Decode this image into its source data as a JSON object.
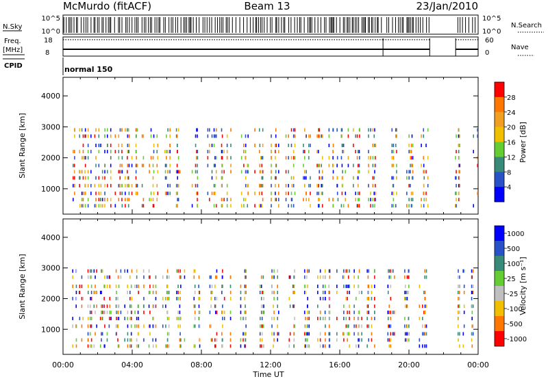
{
  "header": {
    "station": "McMurdo (fitACF)",
    "beam": "Beam 13",
    "date": "23/Jan/2010"
  },
  "params": {
    "nsky_label": "N.Sky",
    "nsearch_label": "N.Search",
    "nsky_ticks": [
      "10^5",
      "10^0"
    ],
    "nsearch_ticks": [
      "10^5",
      "10^0"
    ],
    "freq_label_top": "Freq.",
    "freq_label_unit": "[MHz]",
    "freq_ticks": [
      "18",
      "8"
    ],
    "nave_label": "Nave",
    "nave_ticks": [
      "60",
      "0"
    ],
    "cpid_label": "CPID",
    "cpid_value": "normal 150"
  },
  "axes": {
    "xlabel": "Time UT",
    "xticks": [
      "00:00",
      "04:00",
      "08:00",
      "12:00",
      "16:00",
      "20:00",
      "00:00"
    ],
    "xrange_hours": [
      0,
      24
    ],
    "ylabel": "Slant Range [km]",
    "yticks": [
      "1000",
      "2000",
      "3000",
      "4000"
    ],
    "yrange_km": [
      180,
      4600
    ]
  },
  "chart_data": [
    {
      "type": "heatmap",
      "panel": "power",
      "colorbar_label": "Power [dB]",
      "colorbar_ticks": [
        "4",
        "8",
        "12",
        "16",
        "20",
        "24",
        "28"
      ],
      "colorbar_range": [
        0,
        32
      ],
      "colors": [
        "#0000ff",
        "#2a52c8",
        "#3a8a7a",
        "#66cc33",
        "#f0c000",
        "#f0a020",
        "#ff7700",
        "#ff0000"
      ],
      "gates_km": [
        450,
        650,
        850,
        1100,
        1350,
        1550,
        1750,
        2000,
        2200,
        2400,
        2700,
        2900
      ],
      "times_h": [
        0.8,
        1.4,
        2.0,
        2.6,
        3.2,
        3.8,
        4.4,
        5.2,
        6.0,
        6.8,
        7.7,
        8.6,
        9.4,
        10.4,
        11.3,
        12.2,
        13.1,
        14.0,
        14.9,
        15.6,
        16.3,
        17.0,
        17.8,
        19.0,
        20.0,
        20.8,
        22.9,
        23.8
      ],
      "seed": 13
    },
    {
      "type": "heatmap",
      "panel": "velocity",
      "colorbar_label": "Velocity [m s⁻¹]",
      "colorbar_ticks": [
        "1000",
        "500",
        "100",
        "25",
        "-25",
        "-100",
        "-500",
        "-1000"
      ],
      "colors": [
        "#0000ff",
        "#2a52c8",
        "#3a8a7a",
        "#66cc33",
        "#c0c0c0",
        "#f0c000",
        "#ff7700",
        "#ff0000"
      ],
      "gates_km": [
        450,
        650,
        850,
        1100,
        1350,
        1550,
        1750,
        2000,
        2200,
        2400,
        2700,
        2900
      ],
      "times_h": [
        0.8,
        1.4,
        2.0,
        2.6,
        3.2,
        3.8,
        4.4,
        5.2,
        6.0,
        6.8,
        7.7,
        8.6,
        9.4,
        10.4,
        11.3,
        12.2,
        13.1,
        14.0,
        14.9,
        15.6,
        16.3,
        17.0,
        17.8,
        19.0,
        20.0,
        20.8,
        22.9,
        23.8
      ],
      "seed": 29
    }
  ]
}
